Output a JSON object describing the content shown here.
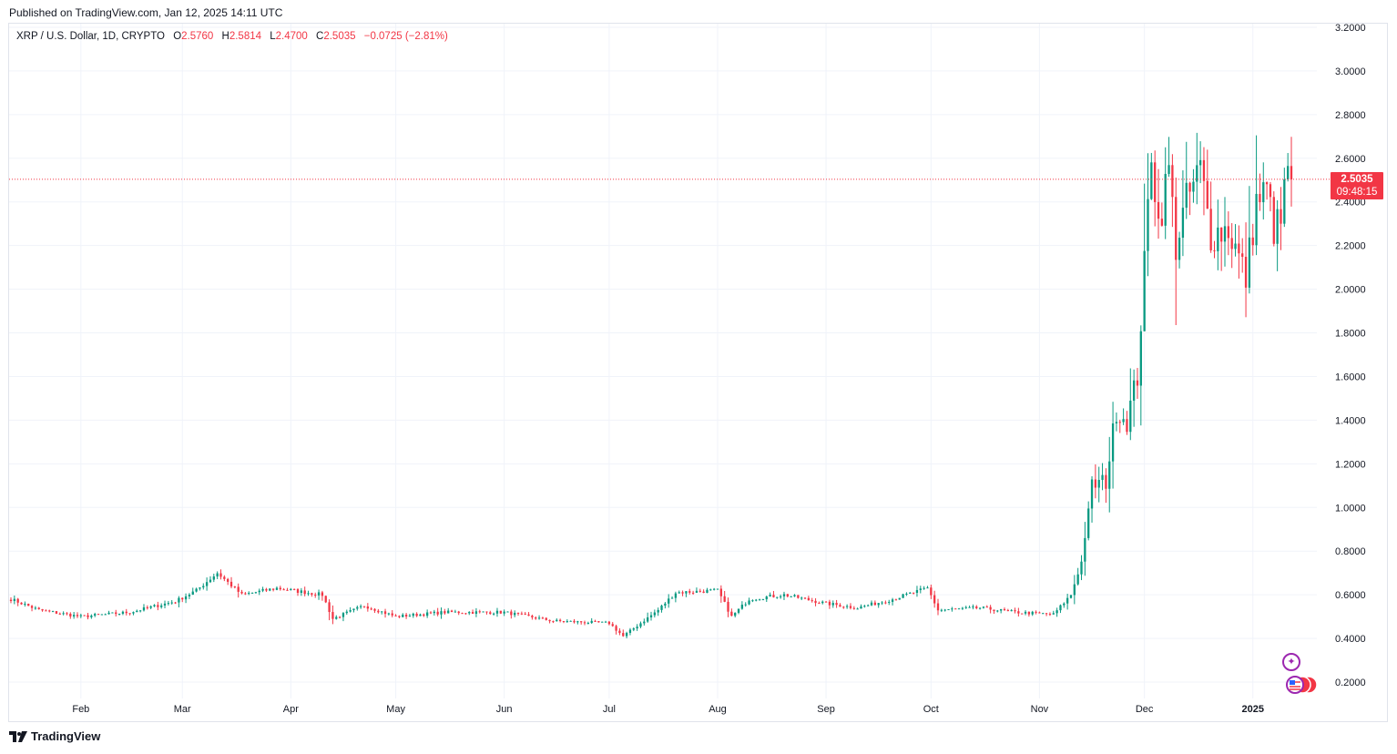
{
  "header": {
    "published_text": "Published on TradingView.com, Jan 12, 2025 14:11 UTC"
  },
  "legend": {
    "symbol": "XRP / U.S. Dollar, 1D, CRYPTO",
    "o_label": "O",
    "o_value": "2.5760",
    "h_label": "H",
    "h_value": "2.5814",
    "l_label": "L",
    "l_value": "2.4700",
    "c_label": "C",
    "c_value": "2.5035",
    "change": "−0.0725 (−2.81%)"
  },
  "price_tag": {
    "price": "2.5035",
    "countdown": "09:48:15"
  },
  "footer": {
    "brand": "TradingView"
  },
  "icons": {
    "spark": "sparkle-icon",
    "flags": "us-flag-events-icon",
    "logo": "tradingview-logo-icon"
  },
  "colors": {
    "up": "#089981",
    "down": "#f23645",
    "grid": "#f0f3fa",
    "last_price_line": "#f23645"
  },
  "chart_data": {
    "type": "candlestick",
    "title": "XRP / U.S. Dollar, 1D, CRYPTO",
    "ylim": [
      0.1,
      3.22
    ],
    "y_ticks": [
      "3.2000",
      "3.0000",
      "2.8000",
      "2.6000",
      "2.4000",
      "2.2000",
      "2.0000",
      "1.8000",
      "1.6000",
      "1.4000",
      "1.2000",
      "1.0000",
      "0.8000",
      "0.6000",
      "0.4000",
      "0.2000"
    ],
    "x_ticks": [
      "Feb",
      "Mar",
      "Apr",
      "May",
      "Jun",
      "Jul",
      "Aug",
      "Sep",
      "Oct",
      "Nov",
      "Dec",
      "2025"
    ],
    "last_price": 2.5035,
    "grid": true,
    "approx_close_path": [
      {
        "date": "2024-01-12",
        "close": 0.58
      },
      {
        "date": "2024-01-20",
        "close": 0.53
      },
      {
        "date": "2024-02-01",
        "close": 0.5
      },
      {
        "date": "2024-02-15",
        "close": 0.52
      },
      {
        "date": "2024-02-28",
        "close": 0.57
      },
      {
        "date": "2024-03-05",
        "close": 0.62
      },
      {
        "date": "2024-03-11",
        "close": 0.7
      },
      {
        "date": "2024-03-18",
        "close": 0.6
      },
      {
        "date": "2024-03-28",
        "close": 0.63
      },
      {
        "date": "2024-04-10",
        "close": 0.6
      },
      {
        "date": "2024-04-13",
        "close": 0.49
      },
      {
        "date": "2024-04-22",
        "close": 0.55
      },
      {
        "date": "2024-05-01",
        "close": 0.5
      },
      {
        "date": "2024-05-15",
        "close": 0.52
      },
      {
        "date": "2024-06-01",
        "close": 0.52
      },
      {
        "date": "2024-06-15",
        "close": 0.48
      },
      {
        "date": "2024-07-01",
        "close": 0.47
      },
      {
        "date": "2024-07-05",
        "close": 0.41
      },
      {
        "date": "2024-07-15",
        "close": 0.53
      },
      {
        "date": "2024-07-20",
        "close": 0.61
      },
      {
        "date": "2024-08-01",
        "close": 0.62
      },
      {
        "date": "2024-08-05",
        "close": 0.5
      },
      {
        "date": "2024-08-10",
        "close": 0.58
      },
      {
        "date": "2024-08-20",
        "close": 0.6
      },
      {
        "date": "2024-09-01",
        "close": 0.56
      },
      {
        "date": "2024-09-10",
        "close": 0.54
      },
      {
        "date": "2024-09-20",
        "close": 0.58
      },
      {
        "date": "2024-09-30",
        "close": 0.63
      },
      {
        "date": "2024-10-03",
        "close": 0.53
      },
      {
        "date": "2024-10-15",
        "close": 0.54
      },
      {
        "date": "2024-10-25",
        "close": 0.52
      },
      {
        "date": "2024-11-05",
        "close": 0.51
      },
      {
        "date": "2024-11-10",
        "close": 0.6
      },
      {
        "date": "2024-11-13",
        "close": 0.75
      },
      {
        "date": "2024-11-16",
        "close": 1.1
      },
      {
        "date": "2024-11-20",
        "close": 1.12
      },
      {
        "date": "2024-11-23",
        "close": 1.45
      },
      {
        "date": "2024-11-26",
        "close": 1.4
      },
      {
        "date": "2024-11-29",
        "close": 1.6
      },
      {
        "date": "2024-12-01",
        "close": 2.1
      },
      {
        "date": "2024-12-03",
        "close": 2.65
      },
      {
        "date": "2024-12-05",
        "close": 2.3
      },
      {
        "date": "2024-12-08",
        "close": 2.55
      },
      {
        "date": "2024-12-10",
        "close": 2.2
      },
      {
        "date": "2024-12-13",
        "close": 2.4
      },
      {
        "date": "2024-12-17",
        "close": 2.55
      },
      {
        "date": "2024-12-20",
        "close": 2.25
      },
      {
        "date": "2024-12-25",
        "close": 2.28
      },
      {
        "date": "2024-12-30",
        "close": 2.05
      },
      {
        "date": "2025-01-02",
        "close": 2.4
      },
      {
        "date": "2025-01-05",
        "close": 2.45
      },
      {
        "date": "2025-01-07",
        "close": 2.28
      },
      {
        "date": "2025-01-09",
        "close": 2.3
      },
      {
        "date": "2025-01-11",
        "close": 2.58
      },
      {
        "date": "2025-01-12",
        "close": 2.5035
      }
    ]
  }
}
